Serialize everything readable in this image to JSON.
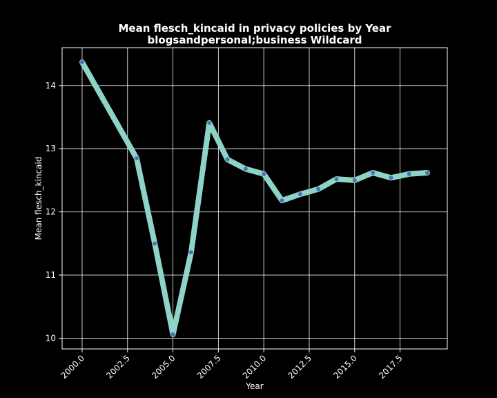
{
  "chart_data": {
    "type": "line",
    "title_line1": "Mean flesch_kincaid in privacy policies by Year",
    "title_line2": "blogsandpersonal;business Wildcard",
    "xlabel": "Year",
    "ylabel": "Mean flesch_kincaid",
    "xlim": [
      1998.9,
      2020.1
    ],
    "ylim": [
      9.83,
      14.6
    ],
    "xticks": [
      2000.0,
      2002.5,
      2005.0,
      2007.5,
      2010.0,
      2012.5,
      2015.0,
      2017.5
    ],
    "xtick_labels": [
      "2000.0",
      "2002.5",
      "2005.0",
      "2007.5",
      "2010.0",
      "2012.5",
      "2015.0",
      "2017.5"
    ],
    "yticks": [
      10,
      11,
      12,
      13,
      14
    ],
    "ytick_labels": [
      "10",
      "11",
      "12",
      "13",
      "14"
    ],
    "grid": true,
    "colors": {
      "background": "#000000",
      "line": "#8dd3c7",
      "marker": "#4c72b0",
      "text": "#ffffff"
    },
    "series": [
      {
        "x": [
          2000,
          2003,
          2004,
          2005,
          2006,
          2007,
          2008,
          2009,
          2010,
          2011,
          2012,
          2013,
          2014,
          2015,
          2016,
          2017,
          2018,
          2019
        ],
        "values": [
          14.37,
          12.85,
          11.5,
          10.06,
          11.36,
          13.41,
          12.83,
          12.68,
          12.6,
          12.18,
          12.28,
          12.36,
          12.52,
          12.5,
          12.62,
          12.54,
          12.6,
          12.62
        ]
      }
    ]
  }
}
